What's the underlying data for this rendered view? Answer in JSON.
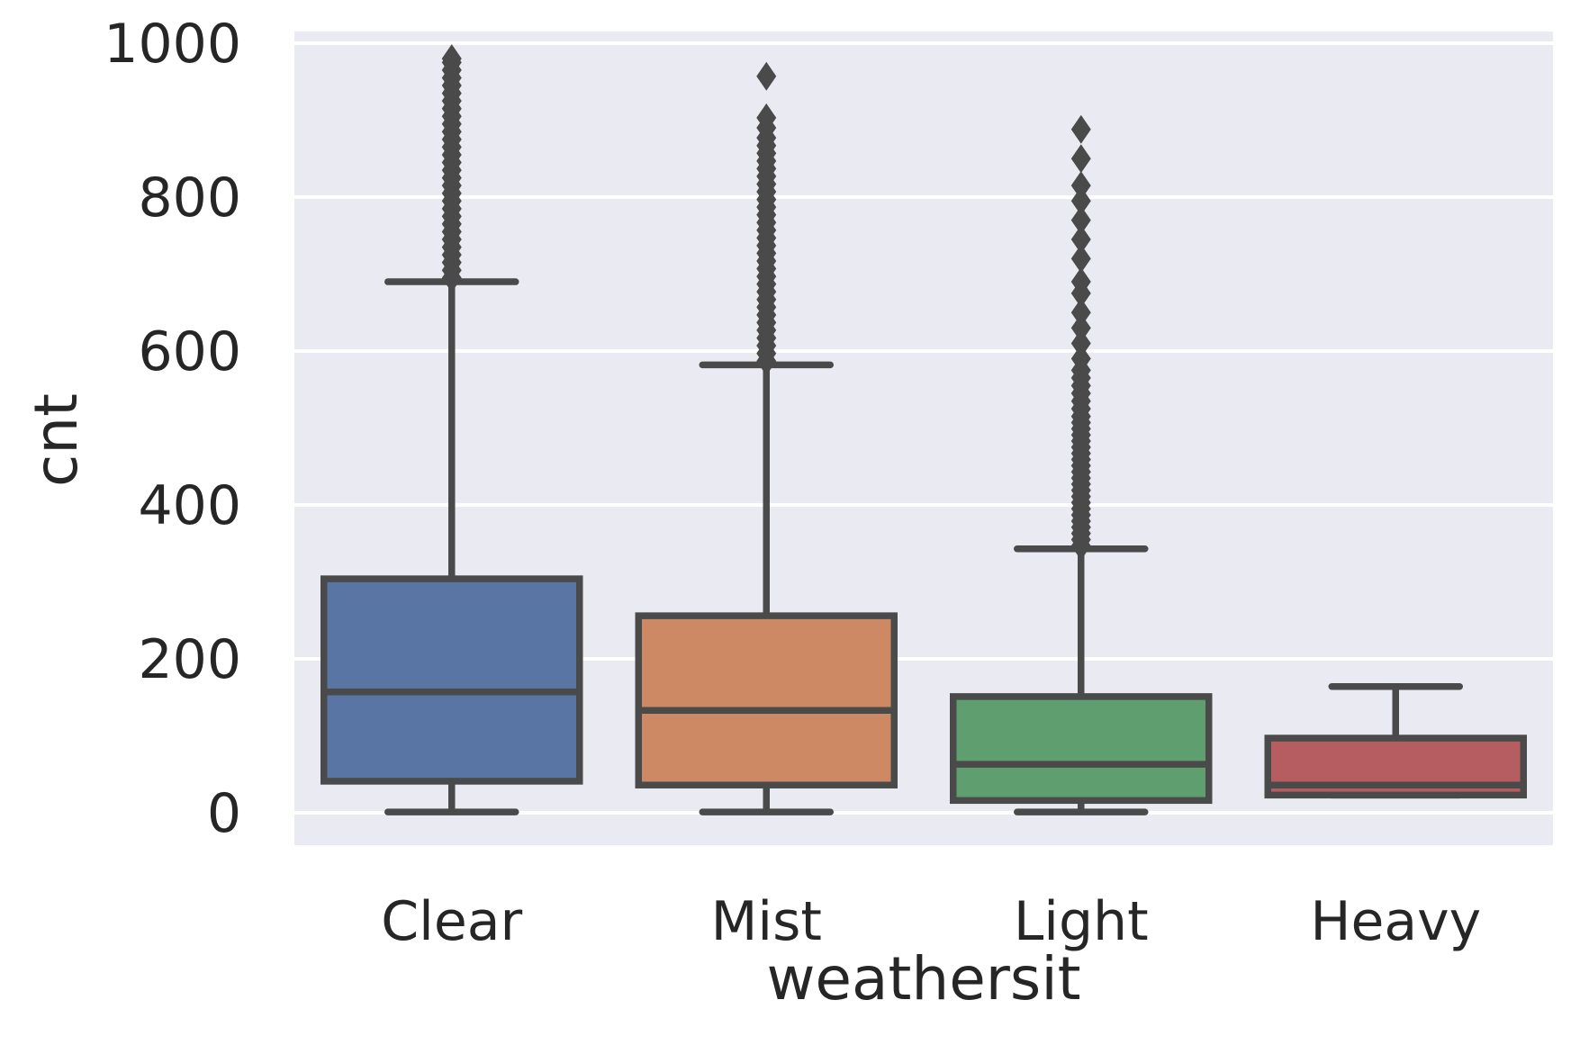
{
  "chart_data": {
    "type": "box",
    "title": "",
    "xlabel": "weathersit",
    "ylabel": "cnt",
    "ylim": [
      -40,
      1020
    ],
    "yticks": [
      0,
      200,
      400,
      600,
      800,
      1000
    ],
    "ytick_labels": [
      "0",
      "200",
      "400",
      "600",
      "800",
      "1000"
    ],
    "grid": true,
    "background_color": "#EAEAF2",
    "grid_color": "#FFFFFF",
    "line_color": "#4A4A4A",
    "categories": [
      "Clear",
      "Mist",
      "Light",
      "Heavy"
    ],
    "boxes": [
      {
        "category": "Clear",
        "color": "#5975A4",
        "whisker_low": 1,
        "q1": 41,
        "median": 157,
        "q3": 304,
        "whisker_high": 690,
        "outliers": [
          695,
          705,
          715,
          725,
          735,
          745,
          755,
          765,
          775,
          785,
          795,
          805,
          815,
          825,
          835,
          845,
          855,
          865,
          875,
          885,
          895,
          905,
          915,
          925,
          935,
          945,
          955,
          965,
          975,
          980
        ]
      },
      {
        "category": "Mist",
        "color": "#CC8963",
        "whisker_low": 1,
        "q1": 36,
        "median": 133,
        "q3": 256,
        "whisker_high": 582,
        "outliers": [
          587,
          597,
          607,
          617,
          627,
          637,
          647,
          657,
          667,
          677,
          687,
          697,
          707,
          717,
          727,
          737,
          747,
          757,
          767,
          777,
          787,
          797,
          807,
          817,
          827,
          837,
          847,
          857,
          867,
          877,
          890,
          903,
          957
        ]
      },
      {
        "category": "Light",
        "color": "#5F9E6E",
        "whisker_low": 1,
        "q1": 16,
        "median": 63,
        "q3": 151,
        "whisker_high": 343,
        "outliers": [
          347,
          355,
          363,
          371,
          379,
          387,
          395,
          403,
          411,
          419,
          427,
          435,
          443,
          451,
          459,
          467,
          475,
          483,
          491,
          499,
          507,
          515,
          525,
          535,
          545,
          555,
          565,
          575,
          590,
          610,
          630,
          650,
          675,
          690,
          720,
          745,
          770,
          795,
          815,
          850,
          888
        ]
      },
      {
        "category": "Heavy",
        "color": "#B55D60",
        "whisker_low": 23,
        "q1": 23,
        "median": 36,
        "q3": 97,
        "whisker_high": 164,
        "outliers": []
      }
    ]
  }
}
